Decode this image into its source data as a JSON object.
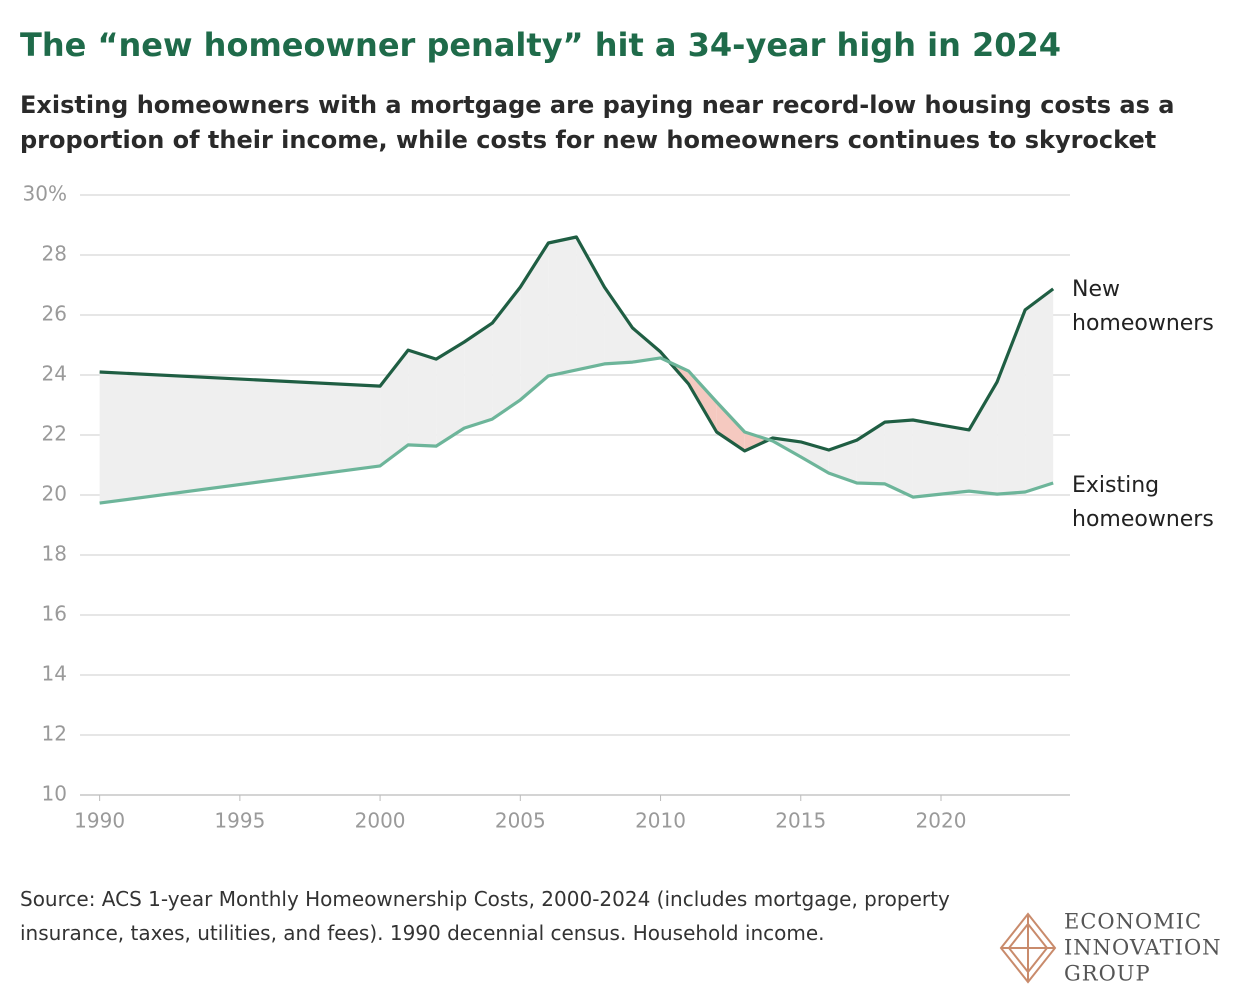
{
  "chart_data": {
    "type": "line",
    "title": "The “new homeowner penalty” hit a 34-year high in 2024",
    "subtitle": "Existing homeowners with a mortgage are paying near record-low housing costs as a proportion of their income, while costs for new homeowners continues to skyrocket",
    "source": "Source: ACS 1-year Monthly Homeownership Costs, 2000-2024 (includes mortgage, property insurance, taxes, utilities, and fees). 1990 decennial census. Household income.",
    "logo_text": [
      "ECONOMIC",
      "INNOVATION",
      "GROUP"
    ],
    "x": [
      1990,
      2000,
      2001,
      2002,
      2003,
      2004,
      2005,
      2006,
      2007,
      2008,
      2009,
      2010,
      2011,
      2012,
      2013,
      2014,
      2015,
      2016,
      2017,
      2018,
      2019,
      2020,
      2021,
      2022,
      2023,
      2024
    ],
    "series": [
      {
        "name": "New homeowners",
        "color": "#1f5e43",
        "values": [
          24.1,
          23.63,
          24.83,
          24.53,
          25.1,
          25.73,
          26.93,
          28.4,
          28.6,
          26.93,
          25.57,
          24.77,
          23.7,
          22.1,
          21.47,
          21.9,
          21.77,
          21.5,
          21.83,
          22.43,
          22.5,
          22.33,
          22.17,
          23.77,
          26.17,
          26.87
        ]
      },
      {
        "name": "Existing homeowners",
        "color": "#6db59a",
        "values": [
          19.73,
          20.97,
          21.67,
          21.63,
          22.23,
          22.53,
          23.17,
          23.97,
          24.17,
          24.37,
          24.43,
          24.57,
          24.13,
          23.1,
          22.1,
          21.8,
          21.27,
          20.73,
          20.4,
          20.37,
          19.93,
          20.03,
          20.13,
          20.03,
          20.1,
          20.4
        ]
      }
    ],
    "fill_colors": {
      "above": "#efefef",
      "below": "#f5c9c0"
    },
    "xlim": [
      1989.3,
      2024.6
    ],
    "xticks": [
      1990,
      1995,
      2000,
      2005,
      2010,
      2015,
      2020
    ],
    "ylim": [
      10,
      30
    ],
    "yticks": [
      10,
      12,
      14,
      16,
      18,
      20,
      22,
      24,
      26,
      28,
      {
        "value": 30,
        "label": "30%"
      }
    ],
    "grid": true
  }
}
